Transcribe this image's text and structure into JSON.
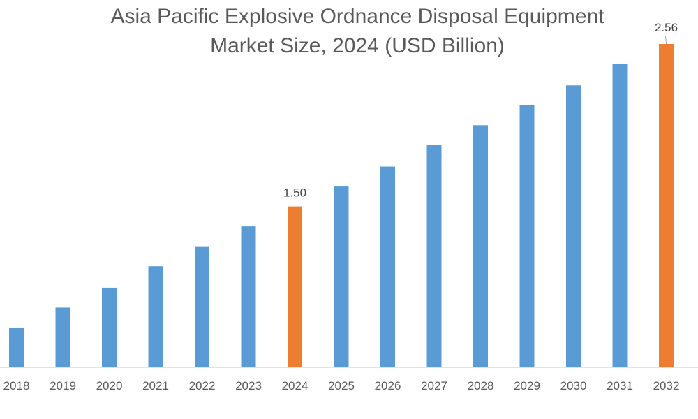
{
  "chart_data": {
    "type": "bar",
    "title": "Asia Pacific Explosive Ordnance Disposal Equipment Market Size, 2024 (USD Billion)",
    "title_lines": [
      "Asia Pacific Explosive Ordnance Disposal Equipment",
      "Market Size, 2024 (USD Billion)"
    ],
    "xlabel": "",
    "ylabel": "",
    "categories": [
      "2018",
      "2019",
      "2020",
      "2021",
      "2022",
      "2023",
      "2024",
      "2025",
      "2026",
      "2027",
      "2028",
      "2029",
      "2030",
      "2031",
      "2032"
    ],
    "values": [
      0.71,
      0.84,
      0.97,
      1.11,
      1.24,
      1.37,
      1.5,
      1.63,
      1.76,
      1.9,
      2.03,
      2.16,
      2.29,
      2.43,
      2.56
    ],
    "data_labels": {
      "2024": "1.50",
      "2032": "2.56"
    },
    "highlight_categories": [
      "2024",
      "2032"
    ],
    "ylim": [
      0.45,
      2.56
    ],
    "grid": false,
    "legend": "none",
    "colors": {
      "bar": "#5B9BD5",
      "highlight": "#ED7D31",
      "axis": "#D9D9D9",
      "text": "#595959"
    }
  }
}
